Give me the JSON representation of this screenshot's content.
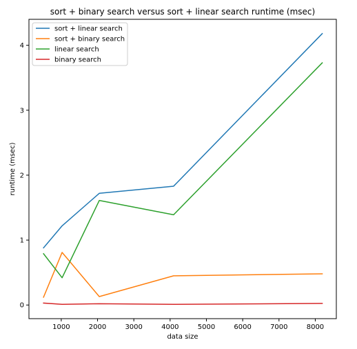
{
  "chart_data": {
    "type": "line",
    "title": "sort + binary search versus sort + linear search runtime (msec)",
    "xlabel": "data size",
    "ylabel": "runtime (msec)",
    "xlim": [
      110,
      8580
    ],
    "ylim": [
      -0.21,
      4.4
    ],
    "xticks": [
      1000,
      2000,
      3000,
      4000,
      5000,
      6000,
      7000,
      8000
    ],
    "yticks": [
      0,
      1,
      2,
      3,
      4
    ],
    "grid": false,
    "legend_position": "top-left",
    "x": [
      512,
      1024,
      2048,
      4096,
      8192
    ],
    "series": [
      {
        "name": "sort + linear search",
        "color": "#1f77b4",
        "values": [
          0.88,
          1.22,
          1.72,
          1.83,
          4.18
        ]
      },
      {
        "name": "sort + binary search",
        "color": "#ff7f0e",
        "values": [
          0.12,
          0.81,
          0.13,
          0.45,
          0.48
        ]
      },
      {
        "name": "linear search",
        "color": "#2ca02c",
        "values": [
          0.79,
          0.42,
          1.61,
          1.39,
          3.73
        ]
      },
      {
        "name": "binary search",
        "color": "#d62728",
        "values": [
          0.03,
          0.01,
          0.02,
          0.01,
          0.025
        ]
      }
    ]
  }
}
